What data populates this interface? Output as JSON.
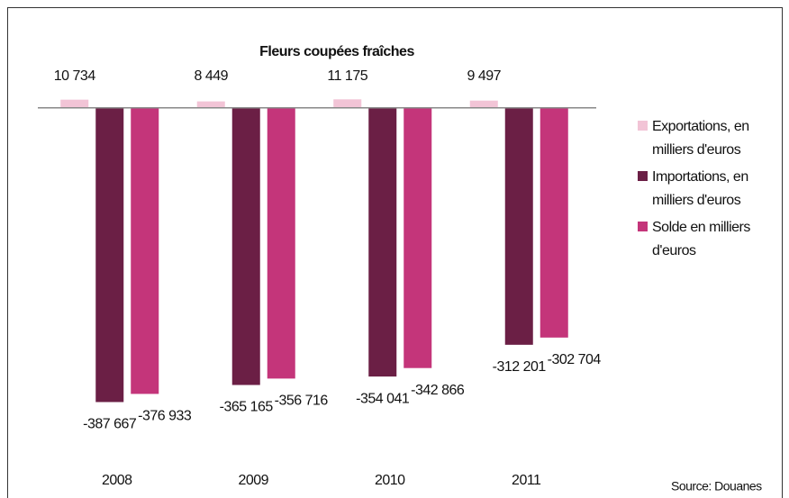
{
  "chart_data": {
    "type": "bar",
    "title": "Fleurs coupées fraîches",
    "categories": [
      "2008",
      "2009",
      "2010",
      "2011"
    ],
    "series": [
      {
        "name": "Exportations, en milliers d'euros",
        "color": "#f2c4d6",
        "values": [
          10734,
          8449,
          11175,
          9497
        ],
        "value_labels": [
          "10 734",
          "8 449",
          "11 175",
          "9 497"
        ]
      },
      {
        "name": "Importations, en milliers d'euros",
        "color": "#6b1f45",
        "values": [
          -387667,
          -365165,
          -354041,
          -312201
        ],
        "value_labels": [
          "-387 667",
          "-365 165",
          "-354 041",
          "-312 201"
        ]
      },
      {
        "name": "Solde en milliers d'euros",
        "color": "#c4357a",
        "values": [
          -376933,
          -356716,
          -342866,
          -302704
        ],
        "value_labels": [
          "-376 933",
          "-356 716",
          "-342 866",
          "-302 704"
        ]
      }
    ],
    "ylim": [
      -450000,
      40000
    ],
    "legend": "right",
    "source": "Source: Douanes"
  }
}
